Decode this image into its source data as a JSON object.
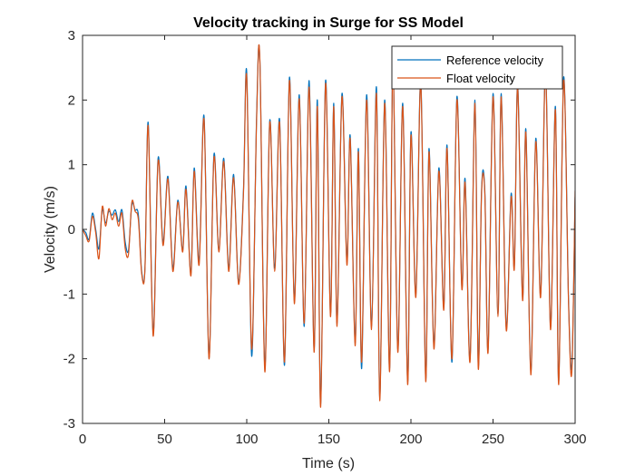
{
  "chart_data": {
    "type": "line",
    "title": "Velocity tracking in Surge for SS Model",
    "xlabel": "Time (s)",
    "ylabel": "Velocity (m/s)",
    "xlim": [
      0,
      300
    ],
    "ylim": [
      -3,
      3
    ],
    "xticks": [
      0,
      50,
      100,
      150,
      200,
      250,
      300
    ],
    "yticks": [
      -3,
      -2,
      -1,
      0,
      1,
      2,
      3
    ],
    "xtick_labels": [
      "0",
      "50",
      "100",
      "150",
      "200",
      "250",
      "300"
    ],
    "ytick_labels": [
      "-3",
      "-2",
      "-1",
      "0",
      "1",
      "2",
      "3"
    ],
    "grid": false,
    "legend": "top-right",
    "series": [
      {
        "name": "Reference velocity",
        "color": "#0072BD",
        "points": [
          [
            0,
            0
          ],
          [
            2,
            -0.05
          ],
          [
            4,
            -0.15
          ],
          [
            6,
            0.25
          ],
          [
            8,
            0
          ],
          [
            10,
            -0.3
          ],
          [
            12,
            0.3
          ],
          [
            14,
            0.1
          ],
          [
            16,
            0.28
          ],
          [
            18,
            0.22
          ],
          [
            20,
            0.3
          ],
          [
            22,
            0.12
          ],
          [
            24,
            0.3
          ],
          [
            26,
            -0.2
          ],
          [
            28,
            -0.32
          ],
          [
            30,
            0.38
          ],
          [
            32,
            0.3
          ],
          [
            34,
            0.22
          ],
          [
            36,
            -0.65
          ],
          [
            38,
            -0.6
          ],
          [
            40,
            1.65
          ],
          [
            43,
            -1.6
          ],
          [
            46,
            1.1
          ],
          [
            49,
            -0.2
          ],
          [
            52,
            0.82
          ],
          [
            55,
            -0.6
          ],
          [
            58,
            0.45
          ],
          [
            61,
            -0.32
          ],
          [
            63,
            0.67
          ],
          [
            66,
            -0.68
          ],
          [
            68,
            0.95
          ],
          [
            71,
            -0.48
          ],
          [
            74,
            1.75
          ],
          [
            77,
            -1.98
          ],
          [
            80,
            1.15
          ],
          [
            83,
            -0.32
          ],
          [
            86,
            1.1
          ],
          [
            89,
            -0.6
          ],
          [
            92,
            0.85
          ],
          [
            95,
            -0.82
          ],
          [
            98,
            0.6
          ],
          [
            100,
            2.42
          ],
          [
            103,
            -1.96
          ],
          [
            106,
            1.75
          ],
          [
            108,
            2.6
          ],
          [
            111,
            -2.12
          ],
          [
            114,
            1.68
          ],
          [
            117,
            -0.6
          ],
          [
            120,
            1.7
          ],
          [
            123,
            -2.1
          ],
          [
            126,
            2.35
          ],
          [
            129,
            -1.1
          ],
          [
            132,
            2.08
          ],
          [
            135,
            -1.5
          ],
          [
            138,
            2.3
          ],
          [
            141,
            -1.85
          ],
          [
            143,
            2.0
          ],
          [
            145,
            -2.7
          ],
          [
            148,
            2.3
          ],
          [
            151,
            -1.3
          ],
          [
            153,
            1.95
          ],
          [
            155,
            -1.45
          ],
          [
            158,
            2.1
          ],
          [
            161,
            -0.5
          ],
          [
            163,
            1.45
          ],
          [
            166,
            -1.75
          ],
          [
            168,
            1.25
          ],
          [
            170,
            -2.15
          ],
          [
            173,
            2.08
          ],
          [
            176,
            -1.5
          ],
          [
            179,
            2.2
          ],
          [
            181,
            -2.6
          ],
          [
            184,
            2.0
          ],
          [
            187,
            -2.15
          ],
          [
            189,
            2.6
          ],
          [
            192,
            -1.85
          ],
          [
            195,
            1.95
          ],
          [
            198,
            -2.35
          ],
          [
            200,
            1.5
          ],
          [
            203,
            -1.0
          ],
          [
            206,
            2.3
          ],
          [
            209,
            -2.3
          ],
          [
            211,
            1.25
          ],
          [
            214,
            -1.8
          ],
          [
            217,
            0.95
          ],
          [
            220,
            -1.2
          ],
          [
            222,
            1.3
          ],
          [
            225,
            -2.05
          ],
          [
            228,
            2.05
          ],
          [
            231,
            -0.88
          ],
          [
            233,
            0.78
          ],
          [
            236,
            -2.0
          ],
          [
            239,
            2.0
          ],
          [
            241,
            -2.1
          ],
          [
            243,
            0.6
          ],
          [
            245,
            0.6
          ],
          [
            247,
            -1.85
          ],
          [
            250,
            2.1
          ],
          [
            253,
            -1.3
          ],
          [
            255,
            2.1
          ],
          [
            258,
            -1.5
          ],
          [
            261,
            0.55
          ],
          [
            263,
            -0.55
          ],
          [
            265,
            2.25
          ],
          [
            268,
            -1.05
          ],
          [
            270,
            1.55
          ],
          [
            273,
            -2.2
          ],
          [
            276,
            1.4
          ],
          [
            279,
            -1.0
          ],
          [
            282,
            2.5
          ],
          [
            285,
            -1.5
          ],
          [
            288,
            1.9
          ],
          [
            290,
            -2.35
          ],
          [
            293,
            2.35
          ],
          [
            296,
            -1.1
          ],
          [
            298,
            -2.1
          ],
          [
            300,
            0.5
          ]
        ]
      },
      {
        "name": "Float velocity",
        "color": "#D95319",
        "points": [
          [
            0,
            0
          ],
          [
            2,
            -0.1
          ],
          [
            4,
            -0.18
          ],
          [
            6,
            0.2
          ],
          [
            8,
            -0.05
          ],
          [
            10,
            -0.45
          ],
          [
            12,
            0.35
          ],
          [
            14,
            0.05
          ],
          [
            16,
            0.32
          ],
          [
            18,
            0.15
          ],
          [
            20,
            0.25
          ],
          [
            22,
            0.05
          ],
          [
            24,
            0.25
          ],
          [
            26,
            -0.3
          ],
          [
            28,
            -0.38
          ],
          [
            30,
            0.42
          ],
          [
            32,
            0.28
          ],
          [
            34,
            0.15
          ],
          [
            36,
            -0.68
          ],
          [
            38,
            -0.62
          ],
          [
            40,
            1.6
          ],
          [
            43,
            -1.65
          ],
          [
            46,
            1.05
          ],
          [
            49,
            -0.25
          ],
          [
            52,
            0.78
          ],
          [
            55,
            -0.65
          ],
          [
            58,
            0.42
          ],
          [
            61,
            -0.35
          ],
          [
            63,
            0.62
          ],
          [
            66,
            -0.72
          ],
          [
            68,
            0.9
          ],
          [
            71,
            -0.55
          ],
          [
            74,
            1.7
          ],
          [
            77,
            -2.0
          ],
          [
            80,
            1.1
          ],
          [
            83,
            -0.35
          ],
          [
            86,
            1.05
          ],
          [
            89,
            -0.65
          ],
          [
            92,
            0.8
          ],
          [
            95,
            -0.85
          ],
          [
            98,
            0.55
          ],
          [
            100,
            2.35
          ],
          [
            103,
            -1.85
          ],
          [
            106,
            1.7
          ],
          [
            108,
            2.62
          ],
          [
            111,
            -2.2
          ],
          [
            114,
            1.65
          ],
          [
            117,
            -0.65
          ],
          [
            120,
            1.65
          ],
          [
            123,
            -2.05
          ],
          [
            126,
            2.3
          ],
          [
            129,
            -1.15
          ],
          [
            132,
            2.02
          ],
          [
            135,
            -1.45
          ],
          [
            138,
            2.2
          ],
          [
            141,
            -1.9
          ],
          [
            143,
            1.9
          ],
          [
            145,
            -2.75
          ],
          [
            148,
            2.25
          ],
          [
            151,
            -1.35
          ],
          [
            153,
            1.9
          ],
          [
            155,
            -1.5
          ],
          [
            158,
            2.05
          ],
          [
            161,
            -0.55
          ],
          [
            163,
            1.4
          ],
          [
            166,
            -1.8
          ],
          [
            168,
            1.2
          ],
          [
            170,
            -2.05
          ],
          [
            173,
            2.0
          ],
          [
            176,
            -1.55
          ],
          [
            179,
            2.1
          ],
          [
            181,
            -2.65
          ],
          [
            184,
            1.95
          ],
          [
            187,
            -2.2
          ],
          [
            189,
            2.58
          ],
          [
            192,
            -1.9
          ],
          [
            195,
            1.9
          ],
          [
            198,
            -2.4
          ],
          [
            200,
            1.45
          ],
          [
            203,
            -1.05
          ],
          [
            206,
            2.25
          ],
          [
            209,
            -2.35
          ],
          [
            211,
            1.2
          ],
          [
            214,
            -1.85
          ],
          [
            217,
            0.9
          ],
          [
            220,
            -1.25
          ],
          [
            222,
            1.25
          ],
          [
            225,
            -2.0
          ],
          [
            228,
            2.0
          ],
          [
            231,
            -0.92
          ],
          [
            233,
            0.72
          ],
          [
            236,
            -2.05
          ],
          [
            239,
            1.95
          ],
          [
            241,
            -2.15
          ],
          [
            243,
            0.55
          ],
          [
            245,
            0.55
          ],
          [
            247,
            -1.9
          ],
          [
            250,
            2.05
          ],
          [
            253,
            -1.35
          ],
          [
            255,
            2.05
          ],
          [
            258,
            -1.55
          ],
          [
            261,
            0.5
          ],
          [
            263,
            -0.6
          ],
          [
            265,
            2.2
          ],
          [
            268,
            -1.1
          ],
          [
            270,
            1.5
          ],
          [
            273,
            -2.25
          ],
          [
            276,
            1.35
          ],
          [
            279,
            -1.05
          ],
          [
            282,
            2.45
          ],
          [
            285,
            -1.55
          ],
          [
            288,
            1.85
          ],
          [
            290,
            -2.4
          ],
          [
            293,
            2.3
          ],
          [
            296,
            -1.15
          ],
          [
            298,
            -2.2
          ],
          [
            300,
            0.6
          ]
        ]
      }
    ]
  }
}
